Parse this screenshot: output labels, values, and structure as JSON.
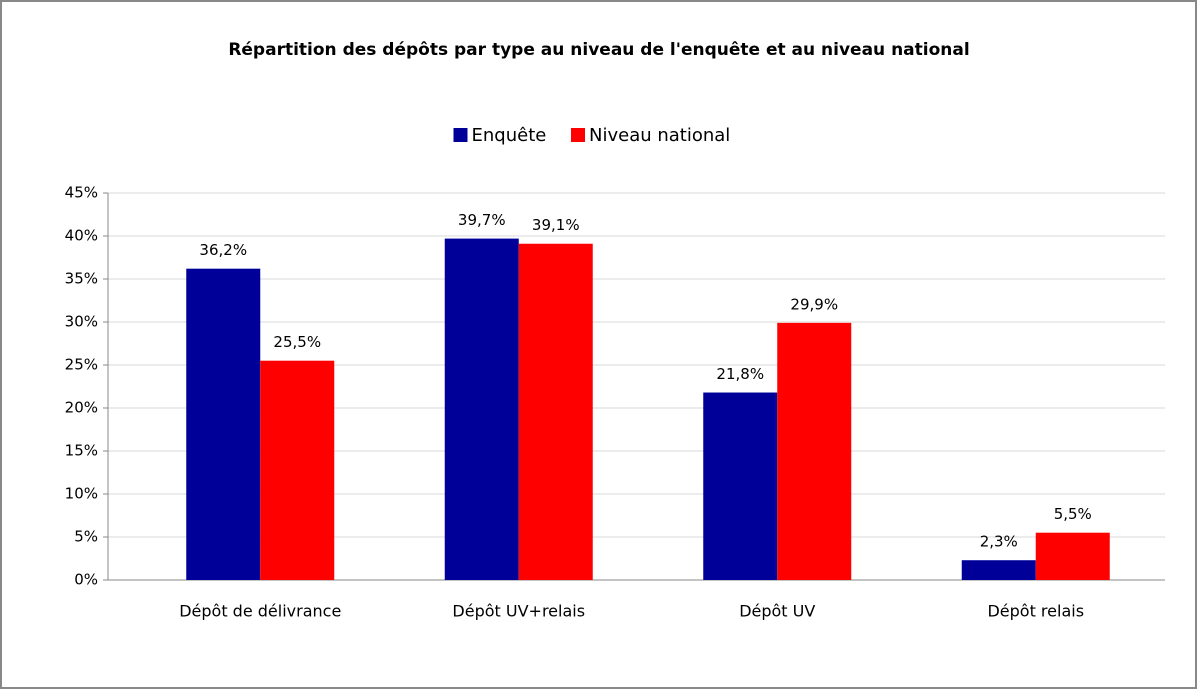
{
  "chart_data": {
    "type": "bar",
    "title": "Répartition des dépôts par type au niveau de l'enquête et au niveau national",
    "categories": [
      "Dépôt de délivrance",
      "Dépôt UV+relais",
      "Dépôt UV",
      "Dépôt relais"
    ],
    "series": [
      {
        "name": "Enquête",
        "color": "#000099",
        "values": [
          36.2,
          39.7,
          21.8,
          2.3
        ],
        "value_labels": [
          "36,2%",
          "39,7%",
          "21,8%",
          "2,3%"
        ]
      },
      {
        "name": "Niveau national",
        "color": "#ff0000",
        "values": [
          25.5,
          39.1,
          29.9,
          5.5
        ],
        "value_labels": [
          "25,5%",
          "39,1%",
          "29,9%",
          "5,5%"
        ]
      }
    ],
    "ylim": [
      0,
      45
    ],
    "yticks": [
      {
        "value": 0,
        "label": "0%"
      },
      {
        "value": 5,
        "label": "5%"
      },
      {
        "value": 10,
        "label": "10%"
      },
      {
        "value": 15,
        "label": "15%"
      },
      {
        "value": 20,
        "label": "20%"
      },
      {
        "value": 25,
        "label": "25%"
      },
      {
        "value": 30,
        "label": "30%"
      },
      {
        "value": 35,
        "label": "35%"
      },
      {
        "value": 40,
        "label": "40%"
      },
      {
        "value": 45,
        "label": "45%"
      }
    ],
    "grid": true,
    "legend": "top"
  }
}
